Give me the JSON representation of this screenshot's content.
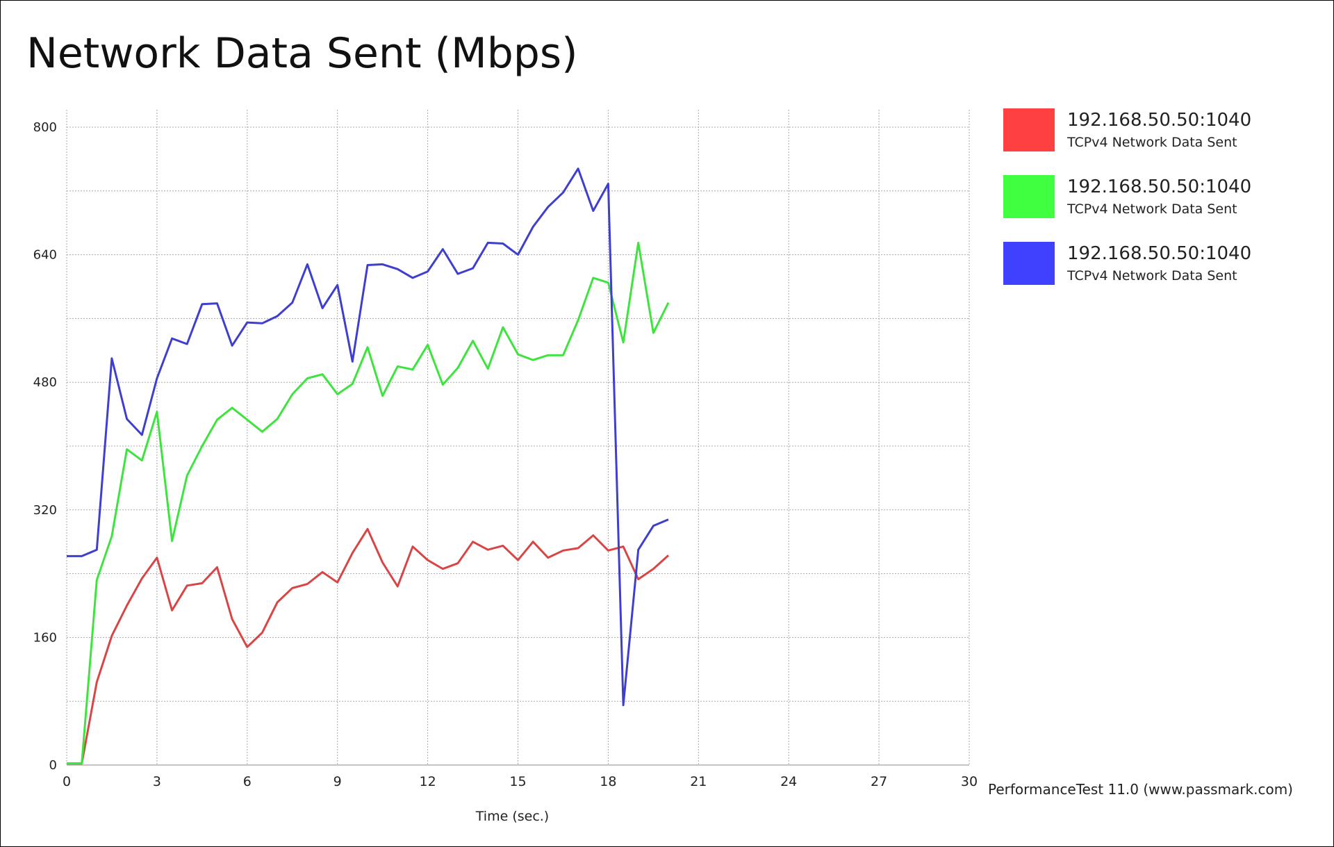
{
  "chart_data": {
    "type": "line",
    "title": "Network Data Sent (Mbps)",
    "xlabel": "Time (sec.)",
    "ylabel": "",
    "xlim": [
      0,
      30
    ],
    "ylim": [
      0,
      800
    ],
    "x_ticks": [
      0,
      3,
      6,
      9,
      12,
      15,
      18,
      21,
      24,
      27,
      30
    ],
    "y_ticks": [
      0,
      160,
      320,
      480,
      640,
      800
    ],
    "grid": true,
    "legend_position": "right",
    "x": [
      0,
      0.5,
      1,
      1.5,
      2,
      2.5,
      3,
      3.5,
      4,
      4.5,
      5,
      5.5,
      6,
      6.5,
      7,
      7.5,
      8,
      8.5,
      9,
      9.5,
      10,
      10.5,
      11,
      11.5,
      12,
      12.5,
      13,
      13.5,
      14,
      14.5,
      15,
      15.5,
      16,
      16.5,
      17,
      17.5,
      18,
      18.5,
      19,
      19.5,
      20
    ],
    "series": [
      {
        "name": "192.168.50.50:1040",
        "subtitle": "TCPv4 Network Data Sent",
        "color": "#ff4040",
        "line_color": "#d94545",
        "values": [
          2,
          2,
          104,
          162,
          200,
          234,
          260,
          194,
          225,
          228,
          248,
          183,
          148,
          166,
          204,
          222,
          227,
          242,
          229,
          266,
          296,
          254,
          224,
          274,
          257,
          246,
          253,
          280,
          270,
          275,
          257,
          280,
          260,
          269,
          272,
          288,
          269,
          274,
          233,
          246,
          263
        ]
      },
      {
        "name": "192.168.50.50:1040",
        "subtitle": "TCPv4 Network Data Sent",
        "color": "#40ff40",
        "line_color": "#3ee43e",
        "values": [
          2,
          2,
          232,
          287,
          396,
          382,
          443,
          281,
          363,
          400,
          433,
          448,
          433,
          418,
          434,
          465,
          485,
          490,
          465,
          478,
          524,
          463,
          500,
          496,
          527,
          477,
          498,
          532,
          497,
          549,
          515,
          508,
          514,
          514,
          558,
          611,
          605,
          530,
          655,
          542,
          580
        ]
      },
      {
        "name": "192.168.50.50:1040",
        "subtitle": "TCPv4 Network Data Sent",
        "color": "#4040ff",
        "line_color": "#3e3ed0",
        "values": [
          262,
          262,
          270,
          510,
          434,
          414,
          485,
          535,
          528,
          578,
          579,
          526,
          555,
          554,
          563,
          580,
          628,
          573,
          602,
          506,
          627,
          628,
          622,
          611,
          619,
          647,
          616,
          623,
          655,
          654,
          640,
          675,
          700,
          718,
          748,
          695,
          729,
          75,
          270,
          300,
          308
        ]
      }
    ]
  },
  "footer": "PerformanceTest 11.0 (www.passmark.com)"
}
